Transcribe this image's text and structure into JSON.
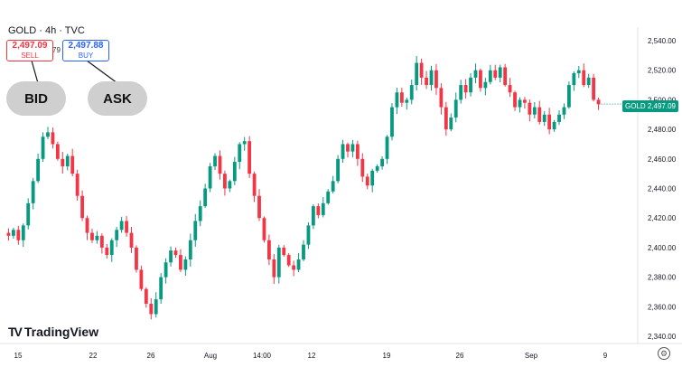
{
  "header": {
    "symbol_line": "GOLD · 4h · TVC"
  },
  "quote": {
    "sell_price": "2,497.09",
    "sell_label": "SELL",
    "buy_price": "2,497.88",
    "buy_label": "BUY",
    "spread": "79"
  },
  "annotations": {
    "bid": "BID",
    "ask": "ASK"
  },
  "last_price_badge": {
    "symbol": "GOLD",
    "price": "2,497.09",
    "color": "#089981"
  },
  "branding": {
    "logo_text": "TradingView"
  },
  "colors": {
    "up": "#089981",
    "down": "#f23645",
    "sell": "#f23645",
    "buy": "#2962ff"
  },
  "chart_data": {
    "type": "candlestick",
    "title": "GOLD · 4h · TVC",
    "x_tick_labels": [
      "15",
      "22",
      "26",
      "Aug",
      "14:00",
      "12",
      "19",
      "26",
      "Sep",
      "9"
    ],
    "y_tick_labels": [
      "2,540.00",
      "2,520.00",
      "2,500.00",
      "2,480.00",
      "2,460.00",
      "2,440.00",
      "2,420.00",
      "2,400.00",
      "2,380.00",
      "2,360.00",
      "2,340.00"
    ],
    "ylim": [
      2340,
      2540
    ],
    "last_price": 2497.09,
    "grid": false,
    "close_path": [
      2410,
      2408,
      2412,
      2405,
      2415,
      2430,
      2445,
      2460,
      2475,
      2478,
      2470,
      2460,
      2455,
      2462,
      2450,
      2435,
      2420,
      2410,
      2405,
      2408,
      2400,
      2395,
      2405,
      2412,
      2418,
      2410,
      2400,
      2385,
      2372,
      2362,
      2355,
      2365,
      2380,
      2390,
      2398,
      2395,
      2385,
      2392,
      2405,
      2418,
      2428,
      2440,
      2455,
      2462,
      2450,
      2440,
      2445,
      2458,
      2470,
      2472,
      2450,
      2435,
      2420,
      2405,
      2392,
      2380,
      2400,
      2395,
      2388,
      2385,
      2392,
      2402,
      2415,
      2428,
      2422,
      2430,
      2438,
      2445,
      2460,
      2470,
      2465,
      2470,
      2460,
      2448,
      2442,
      2452,
      2455,
      2460,
      2475,
      2495,
      2505,
      2498,
      2500,
      2510,
      2525,
      2515,
      2510,
      2520,
      2508,
      2495,
      2480,
      2488,
      2500,
      2510,
      2505,
      2515,
      2520,
      2508,
      2512,
      2520,
      2515,
      2522,
      2510,
      2505,
      2495,
      2500,
      2498,
      2490,
      2495,
      2485,
      2490,
      2480,
      2485,
      2490,
      2495,
      2510,
      2518,
      2520,
      2510,
      2515,
      2500,
      2497
    ]
  }
}
